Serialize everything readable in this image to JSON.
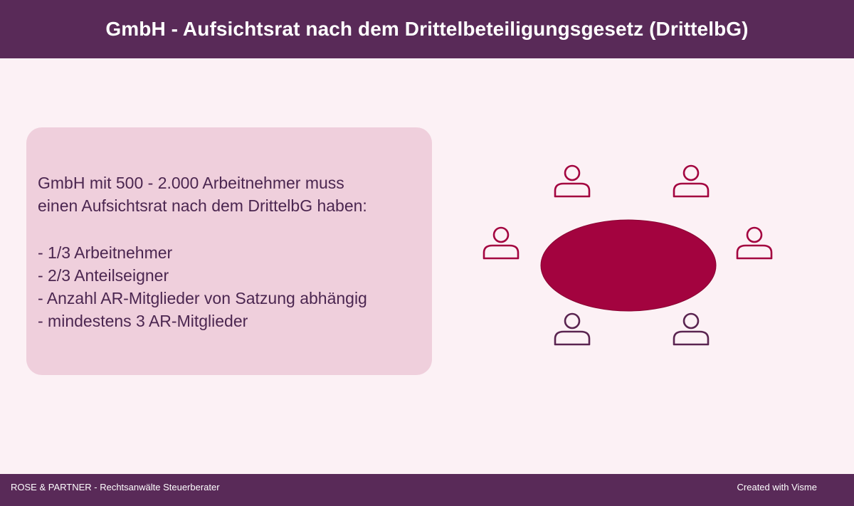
{
  "header": {
    "title": "GmbH - Aufsichtsrat nach dem Drittelbeteiligungsgesetz  (DrittelbG)"
  },
  "info": {
    "intro": [
      "GmbH mit 500 - 2.000 Arbeitnehmer muss",
      "einen Aufsichtsrat nach dem DrittelbG haben:"
    ],
    "items": [
      "- 1/3 Arbeitnehmer",
      "- 2/3 Anteilseigner",
      "- Anzahl AR-Mitglieder von Satzung abhängig",
      "- mindestens 3 AR-Mitglieder"
    ]
  },
  "diagram": {
    "table_color": "#a3033f",
    "person_icons": [
      {
        "name": "person-icon-top-left",
        "color": "#a3033f"
      },
      {
        "name": "person-icon-top-right",
        "color": "#a3033f"
      },
      {
        "name": "person-icon-left",
        "color": "#a3033f"
      },
      {
        "name": "person-icon-right",
        "color": "#a3033f"
      },
      {
        "name": "person-icon-bottom-left",
        "color": "#5a2450"
      },
      {
        "name": "person-icon-bottom-right",
        "color": "#5a2450"
      }
    ]
  },
  "footer": {
    "left_text": "ROSE & PARTNER - Rechtsanwälte Steuerberater",
    "right_text": "Created with Visme"
  }
}
